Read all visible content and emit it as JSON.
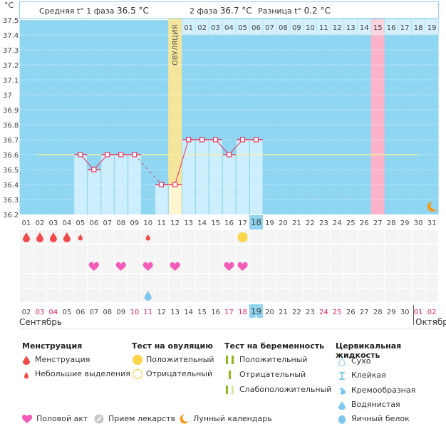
{
  "header": {
    "unit": "°C",
    "phase1_label": "Средняя t° 1 фаза",
    "phase1_value": "36.5 °C",
    "phase2_label": "2 фаза",
    "phase2_value": "36.7 °C",
    "diff_label": "Разница t°",
    "diff_value": "0.2 °C",
    "ovulation_label": "ОВУЛЯЦИЯ"
  },
  "chart_data": {
    "type": "line",
    "title": "",
    "ylabel": "°C",
    "xlabel": "",
    "ylim": [
      36.2,
      37.5
    ],
    "yticks": [
      "37.5",
      "37.4",
      "37.3",
      "37.2",
      "37.1",
      "37",
      "36.9",
      "36.8",
      "36.7",
      "36.6",
      "36.5",
      "36.4",
      "36.3",
      "36.2"
    ],
    "cycle_days": [
      "01",
      "02",
      "03",
      "04",
      "05",
      "06",
      "07",
      "08",
      "09",
      "10",
      "11",
      "12",
      "13",
      "14",
      "15",
      "16",
      "17",
      "18",
      "19",
      "20",
      "21",
      "22",
      "23",
      "24",
      "25",
      "26",
      "27",
      "28",
      "29",
      "30",
      "31"
    ],
    "current_cycle_day": "18",
    "phase2_days": [
      "01",
      "02",
      "03",
      "04",
      "05",
      "06",
      "07",
      "08",
      "09",
      "10",
      "11",
      "12",
      "13",
      "14",
      "15",
      "16",
      "17",
      "18",
      "19"
    ],
    "phase2_highlight_day": "15",
    "ovulation_day": 12,
    "highlight_pink_day": 27,
    "coverline": 36.6,
    "coverline_range": [
      2,
      30
    ],
    "series": [
      {
        "name": "Базальная температура",
        "points": [
          {
            "day": 5,
            "value": 36.6
          },
          {
            "day": 6,
            "value": 36.5
          },
          {
            "day": 7,
            "value": 36.6
          },
          {
            "day": 8,
            "value": 36.6
          },
          {
            "day": 9,
            "value": 36.6
          },
          {
            "day": 11,
            "value": 36.4
          },
          {
            "day": 12,
            "value": 36.4
          },
          {
            "day": 13,
            "value": 36.7
          },
          {
            "day": 14,
            "value": 36.7
          },
          {
            "day": 15,
            "value": 36.7
          },
          {
            "day": 16,
            "value": 36.6
          },
          {
            "day": 17,
            "value": 36.7
          },
          {
            "day": 18,
            "value": 36.7
          }
        ],
        "dashed_segments": [
          [
            9,
            11
          ]
        ]
      }
    ],
    "moon_day": 31
  },
  "events": {
    "menstruation": [
      1,
      2,
      3,
      4
    ],
    "spotting": [
      5,
      10
    ],
    "ovulation_test_positive": [
      17
    ],
    "intercourse": [
      6,
      8,
      10,
      12,
      16,
      17
    ],
    "cervical_watery": [
      10
    ]
  },
  "calendar": {
    "dates": [
      "02",
      "03",
      "04",
      "05",
      "06",
      "07",
      "08",
      "09",
      "10",
      "11",
      "12",
      "13",
      "14",
      "15",
      "16",
      "17",
      "18",
      "19",
      "20",
      "21",
      "22",
      "23",
      "24",
      "25",
      "26",
      "27",
      "28",
      "29",
      "30",
      "01",
      "02"
    ],
    "weekend_indices": [
      1,
      2,
      8,
      9,
      15,
      16,
      22,
      23,
      29,
      30
    ],
    "today_index": 17,
    "month_left": "Сентябрь",
    "month_right": "Октябрь"
  },
  "legend": {
    "menstruation": {
      "title": "Менструация",
      "items": [
        "Менструация",
        "Небольшие выделения"
      ]
    },
    "ovulation_test": {
      "title": "Тест на овуляцию",
      "items": [
        "Положительный",
        "Отрицательный"
      ]
    },
    "pregnancy_test": {
      "title": "Тест на беременность",
      "items": [
        "Положительный",
        "Отрицательный",
        "Слабоположительный"
      ]
    },
    "cervical_fluid": {
      "title": "Цервикальная жидкость",
      "items": [
        "Сухо",
        "Клейкая",
        "Кремообразная",
        "Водянистая",
        "Яичный белок"
      ]
    },
    "bottom": [
      "Половой акт",
      "Прием лекарств",
      "Лунный календарь"
    ]
  },
  "colors": {
    "chart_bg": "#8fd6f2",
    "bar_fill": "#cdeefc",
    "ovulation": "#f5e59a",
    "ovulation_low": "#fdf6d0",
    "pink": "#fbb3c9",
    "line": "#e8345f",
    "coverline": "#f6f0a0",
    "blood": "#f04a4a",
    "heart": "#f55bb8",
    "sun": "#fbd54a",
    "watery": "#7cc6f0",
    "green": "#8cba1b",
    "green_light": "#d6e8a6",
    "moon": "#f39a1d"
  }
}
